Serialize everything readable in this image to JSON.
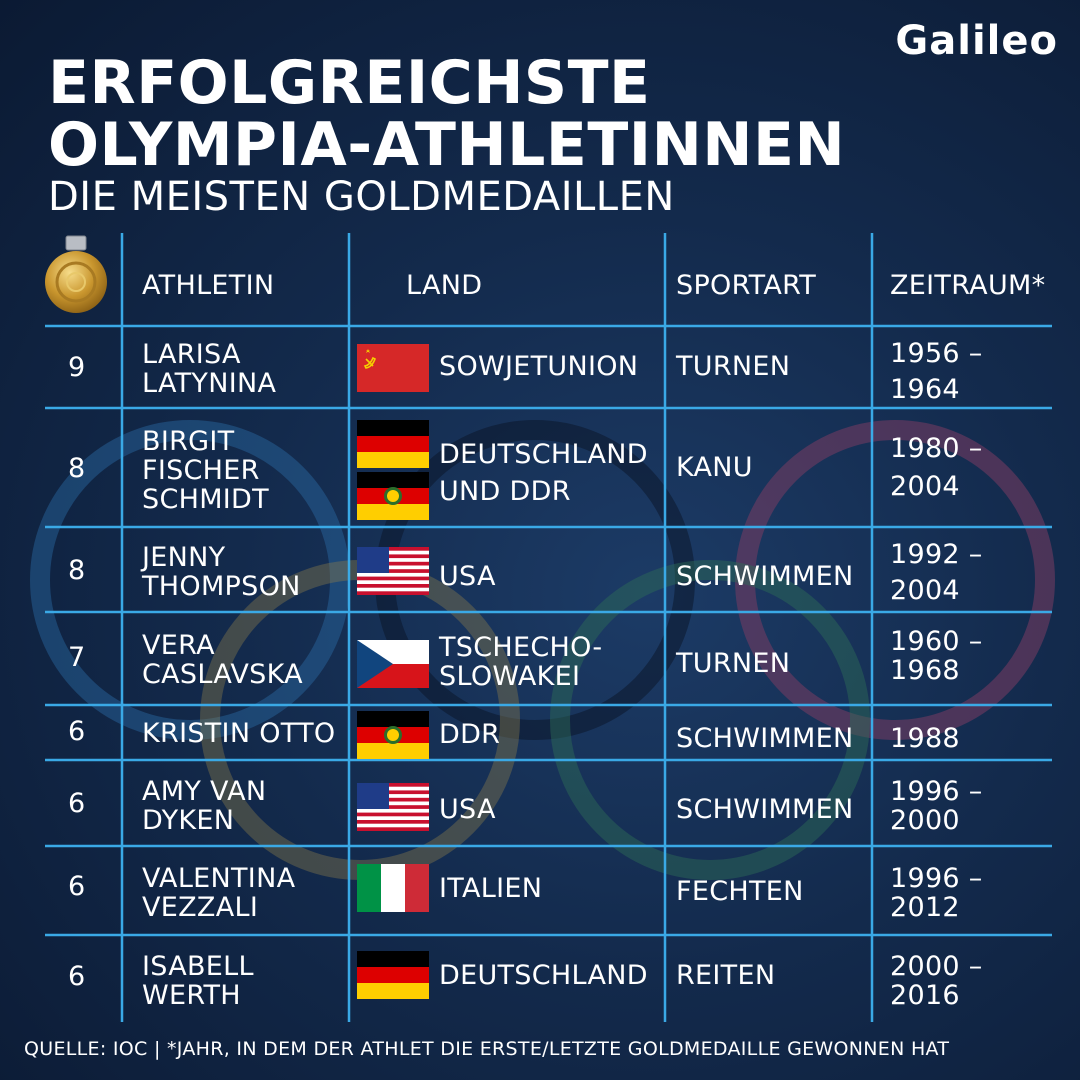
{
  "brand": {
    "logo_text": "Galileo"
  },
  "header": {
    "title_line1": "ERFOLGREICHSTE",
    "title_line2": "OLYMPIA-ATHLETINNEN",
    "subtitle": "DIE MEISTEN GOLDMEDAILLEN"
  },
  "columns": {
    "athlete": "ATHLETIN",
    "country": "LAND",
    "sport": "SPORTART",
    "period": "ZEITRAUM*"
  },
  "rows": [
    {
      "rank": "9",
      "name": [
        "LARISA",
        "LATYNINA"
      ],
      "flags": [
        "soviet-union-flag"
      ],
      "country": [
        "SOWJETUNION"
      ],
      "sport": "TURNEN",
      "period": [
        "1956 –",
        "1964"
      ]
    },
    {
      "rank": "8",
      "name": [
        "BIRGIT",
        "FISCHER",
        "SCHMIDT"
      ],
      "flags": [
        "germany-flag",
        "gdr-flag"
      ],
      "country": [
        "DEUTSCHLAND",
        "UND DDR"
      ],
      "sport": "KANU",
      "period": [
        "1980 –",
        "2004"
      ]
    },
    {
      "rank": "8",
      "name": [
        "JENNY",
        "THOMPSON"
      ],
      "flags": [
        "usa-flag"
      ],
      "country": [
        "USA"
      ],
      "sport": "SCHWIMMEN",
      "period": [
        "1992 –",
        "2004"
      ]
    },
    {
      "rank": "7",
      "name": [
        "VERA",
        "CASLAVSKA"
      ],
      "flags": [
        "czechoslovakia-flag"
      ],
      "country": [
        "TSCHECHO-",
        "SLOWAKEI"
      ],
      "sport": "TURNEN",
      "period": [
        "1960 –",
        "1968"
      ]
    },
    {
      "rank": "6",
      "name": [
        "KRISTIN OTTO"
      ],
      "flags": [
        "gdr-flag"
      ],
      "country": [
        "DDR"
      ],
      "sport": "SCHWIMMEN",
      "period": [
        "1988"
      ]
    },
    {
      "rank": "6",
      "name": [
        "AMY VAN",
        "DYKEN"
      ],
      "flags": [
        "usa-flag"
      ],
      "country": [
        "USA"
      ],
      "sport": "SCHWIMMEN",
      "period": [
        "1996 –",
        "2000"
      ]
    },
    {
      "rank": "6",
      "name": [
        "VALENTINA",
        "VEZZALI"
      ],
      "flags": [
        "italy-flag"
      ],
      "country": [
        "ITALIEN"
      ],
      "sport": "FECHTEN",
      "period": [
        "1996 –",
        "2012"
      ]
    },
    {
      "rank": "6",
      "name": [
        "ISABELL",
        "WERTH"
      ],
      "flags": [
        "germany-flag"
      ],
      "country": [
        "DEUTSCHLAND"
      ],
      "sport": "REITEN",
      "period": [
        "2000 –",
        "2016"
      ]
    }
  ],
  "footer": "QUELLE:  IOC | *JAHR, IN DEM DER ATHLET DIE ERSTE/LETZTE GOLDMEDAILLE GEWONNEN HAT",
  "colors": {
    "background": "#132a4c",
    "grid_line": "#3aa9e6",
    "text": "#ffffff",
    "ring_blue": "#1e6aa8",
    "ring_yellow": "#8a7a3a",
    "ring_green": "#2f6a52",
    "ring_red": "#6a3a5a"
  },
  "icons": {
    "medal": "gold-medal-icon"
  }
}
